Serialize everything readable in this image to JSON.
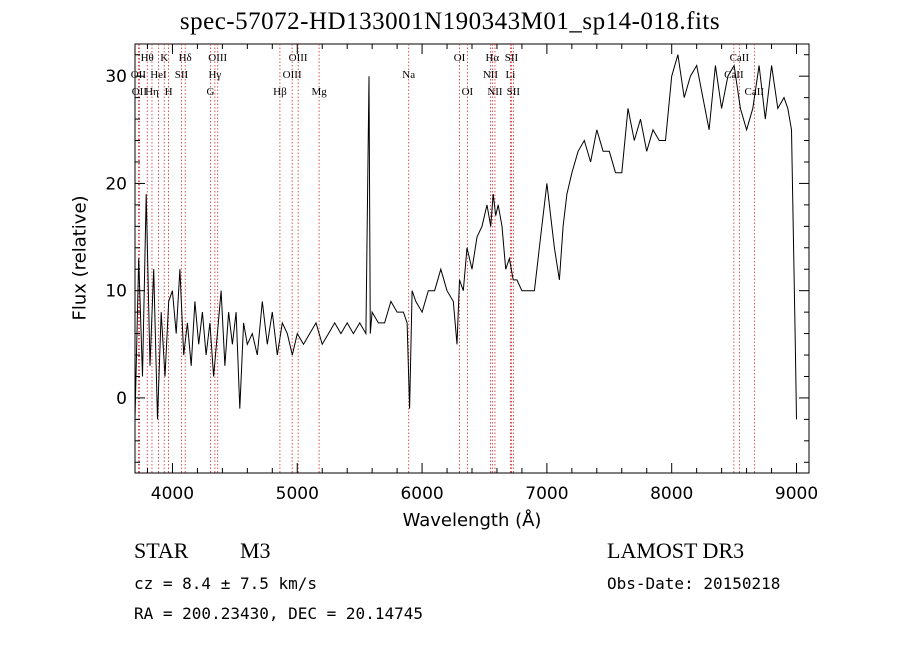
{
  "chart_data": {
    "type": "line",
    "title": "spec-57072-HD133001N190343M01_sp14-018.fits",
    "xlabel": "Wavelength (Å)",
    "ylabel": "Flux (relative)",
    "xlim": [
      3700,
      9100
    ],
    "ylim": [
      -7,
      33
    ],
    "xticks": [
      4000,
      5000,
      6000,
      7000,
      8000,
      9000
    ],
    "yticks": [
      0,
      10,
      20,
      30
    ],
    "grid": false,
    "series": [
      {
        "name": "Flux",
        "x": [
          3700,
          3730,
          3760,
          3790,
          3820,
          3850,
          3880,
          3910,
          3940,
          3970,
          4000,
          4030,
          4060,
          4090,
          4120,
          4150,
          4180,
          4210,
          4240,
          4270,
          4300,
          4330,
          4360,
          4390,
          4420,
          4450,
          4480,
          4510,
          4540,
          4570,
          4600,
          4640,
          4680,
          4720,
          4760,
          4800,
          4840,
          4880,
          4920,
          4960,
          5000,
          5050,
          5100,
          5150,
          5200,
          5250,
          5300,
          5350,
          5400,
          5450,
          5500,
          5550,
          5575,
          5585,
          5600,
          5650,
          5700,
          5750,
          5800,
          5850,
          5880,
          5900,
          5920,
          5950,
          6000,
          6050,
          6100,
          6150,
          6200,
          6250,
          6280,
          6300,
          6330,
          6360,
          6400,
          6440,
          6480,
          6520,
          6550,
          6570,
          6590,
          6610,
          6640,
          6670,
          6700,
          6730,
          6760,
          6800,
          6830,
          6860,
          6900,
          6950,
          7000,
          7030,
          7060,
          7100,
          7130,
          7160,
          7200,
          7250,
          7300,
          7350,
          7400,
          7450,
          7500,
          7550,
          7600,
          7650,
          7700,
          7750,
          7800,
          7850,
          7900,
          7950,
          8000,
          8050,
          8100,
          8150,
          8200,
          8250,
          8300,
          8350,
          8400,
          8450,
          8500,
          8550,
          8600,
          8650,
          8700,
          8750,
          8800,
          8850,
          8900,
          8930,
          8960,
          8990,
          9000
        ],
        "values": [
          -2,
          13,
          2,
          19,
          3,
          12,
          -2,
          8,
          2,
          9,
          10,
          6,
          12,
          4,
          7,
          3,
          9,
          5,
          8,
          4,
          7,
          2,
          6,
          10,
          3,
          8,
          5,
          8,
          -1,
          7,
          5,
          6,
          4,
          9,
          5,
          8,
          4,
          7,
          6,
          4,
          6,
          5,
          6,
          7,
          5,
          6,
          7,
          6,
          7,
          6,
          7,
          6,
          30,
          6,
          8,
          7,
          7,
          9,
          8,
          8,
          7,
          -1,
          10,
          9,
          8,
          10,
          10,
          12,
          10,
          9,
          5,
          11,
          10,
          14,
          12,
          15,
          16,
          18,
          16,
          19,
          17,
          18,
          16,
          12,
          13,
          11,
          11,
          10,
          10,
          10,
          10,
          15,
          20,
          17,
          14,
          11,
          16,
          19,
          21,
          23,
          24,
          22,
          25,
          23,
          23,
          21,
          21,
          27,
          24,
          26,
          23,
          25,
          24,
          24,
          30,
          32,
          28,
          30,
          31,
          28,
          25,
          31,
          27,
          30,
          31,
          27,
          25,
          27,
          31,
          26,
          31,
          27,
          28,
          27,
          25,
          5,
          -2
        ]
      }
    ],
    "lines": [
      {
        "label": "Hθ",
        "x": 3798,
        "row": 1
      },
      {
        "label": "Hη",
        "x": 3836,
        "row": 3
      },
      {
        "label": "OII",
        "x": 3727,
        "row": 2
      },
      {
        "label": "OII",
        "x": 3735,
        "row": 3
      },
      {
        "label": "K",
        "x": 3934,
        "row": 1
      },
      {
        "label": "HeI",
        "x": 3888,
        "row": 2
      },
      {
        "label": "H",
        "x": 3969,
        "row": 3
      },
      {
        "label": "Hδ",
        "x": 4102,
        "row": 1
      },
      {
        "label": "SII",
        "x": 4072,
        "row": 2
      },
      {
        "label": "OIII",
        "x": 4363,
        "row": 1
      },
      {
        "label": "Hγ",
        "x": 4340,
        "row": 2
      },
      {
        "label": "G",
        "x": 4305,
        "row": 3
      },
      {
        "label": "Hβ",
        "x": 4861,
        "row": 3
      },
      {
        "label": "OIII",
        "x": 5007,
        "row": 1
      },
      {
        "label": "OIII",
        "x": 4959,
        "row": 2
      },
      {
        "label": "Mg",
        "x": 5175,
        "row": 3
      },
      {
        "label": "Na",
        "x": 5893,
        "row": 2
      },
      {
        "label": "OI",
        "x": 6300,
        "row": 1
      },
      {
        "label": "OI",
        "x": 6363,
        "row": 3
      },
      {
        "label": "Hα",
        "x": 6563,
        "row": 1
      },
      {
        "label": "NII",
        "x": 6548,
        "row": 2
      },
      {
        "label": "NII",
        "x": 6584,
        "row": 3
      },
      {
        "label": "SII",
        "x": 6716,
        "row": 1
      },
      {
        "label": "Li",
        "x": 6708,
        "row": 2
      },
      {
        "label": "SII",
        "x": 6731,
        "row": 3
      },
      {
        "label": "CaII",
        "x": 8542,
        "row": 1
      },
      {
        "label": "CaII",
        "x": 8498,
        "row": 2
      },
      {
        "label": "CaII",
        "x": 8662,
        "row": 3
      }
    ]
  },
  "info": {
    "class": "STAR",
    "subclass": "M3",
    "survey": "LAMOST DR3",
    "cz": "cz = 8.4 ± 7.5 km/s",
    "obs_date": "Obs-Date: 20150218",
    "coords": "RA = 200.23430, DEC =  20.14745"
  }
}
